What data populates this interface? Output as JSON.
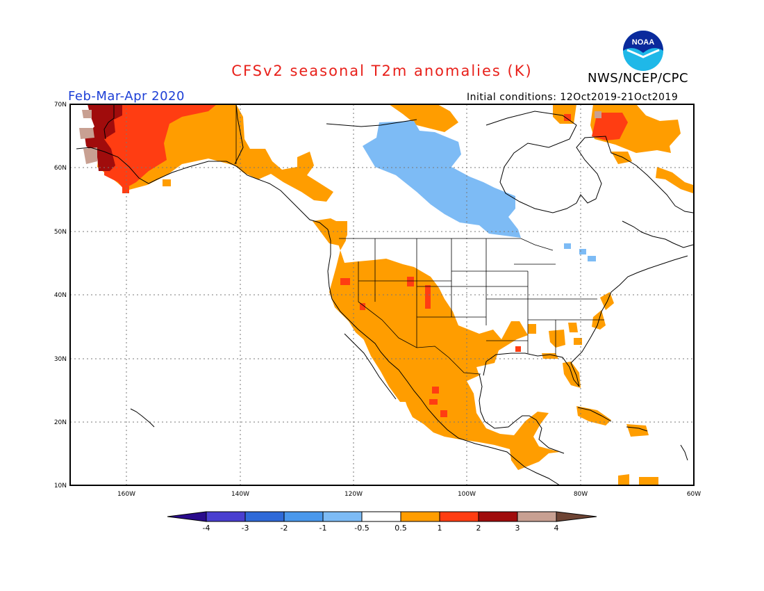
{
  "header": {
    "title": "CFSv2 seasonal T2m anomalies (K)",
    "agency": "NWS/NCEP/CPC",
    "period": "Feb-Mar-Apr 2020",
    "initial_conditions": "Initial conditions: 12Oct2019-21Oct2019",
    "logo_text": "NOAA"
  },
  "axes": {
    "lat_labels": [
      "70N",
      "60N",
      "50N",
      "40N",
      "30N",
      "20N",
      "10N"
    ],
    "lon_labels": [
      "160W",
      "140W",
      "120W",
      "100W",
      "80W",
      "60W"
    ]
  },
  "colorbar": {
    "labels": [
      "-4",
      "-3",
      "-2",
      "-1",
      "-0.5",
      "0.5",
      "1",
      "2",
      "3",
      "4"
    ],
    "colors": [
      "#2a0b8c",
      "#4a3fd0",
      "#2f6ad8",
      "#4a98ec",
      "#7dbbf5",
      "#ffffff",
      "#ff9d00",
      "#ff3d12",
      "#a00c0c",
      "#c8a092",
      "#6e4434"
    ]
  },
  "colors": {
    "title": "#e8201a",
    "period": "#1d3fd6",
    "warm_05_1": "#ff9d00",
    "warm_1_2": "#ff3d12",
    "warm_2_3": "#a00c0c",
    "warm_3_4": "#c8a092",
    "cool_05_1": "#7dbbf5"
  }
}
